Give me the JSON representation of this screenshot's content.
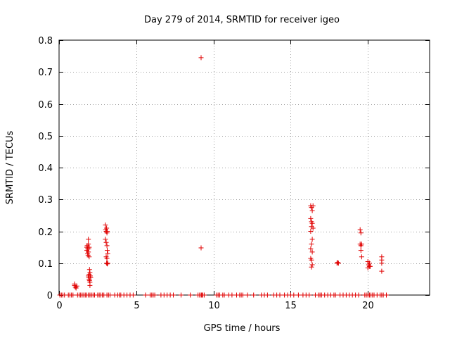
{
  "chart_data": {
    "type": "scatter",
    "title": "Day 279 of 2014, SRMTID for receiver igeo",
    "xlabel": "GPS time / hours",
    "ylabel": "SRMTID / TECUs",
    "xlim": [
      0,
      24
    ],
    "ylim": [
      0,
      0.8
    ],
    "xticks": [
      0,
      5,
      10,
      15,
      20
    ],
    "yticks": [
      0,
      0.1,
      0.2,
      0.3,
      0.4,
      0.5,
      0.6,
      0.7,
      0.8
    ],
    "xtick_labels": [
      "0",
      "5",
      "10",
      "15",
      "20"
    ],
    "ytick_labels": [
      "0",
      "0.1",
      "0.2",
      "0.3",
      "0.4",
      "0.5",
      "0.6",
      "0.7",
      "0.8"
    ],
    "grid": true,
    "marker": "plus",
    "series_color": "#e00000",
    "series": [
      {
        "name": "SRMTID",
        "points": [
          [
            0.05,
            0
          ],
          [
            0.15,
            0
          ],
          [
            0.25,
            0
          ],
          [
            0.35,
            0
          ],
          [
            0.6,
            0
          ],
          [
            0.7,
            0
          ],
          [
            0.8,
            0
          ],
          [
            0.9,
            0
          ],
          [
            1.0,
            0.035
          ],
          [
            1.0,
            0.03
          ],
          [
            1.05,
            0.025
          ],
          [
            1.1,
            0.022
          ],
          [
            1.15,
            0.028
          ],
          [
            1.2,
            0
          ],
          [
            1.3,
            0
          ],
          [
            1.4,
            0
          ],
          [
            1.5,
            0
          ],
          [
            1.6,
            0
          ],
          [
            1.7,
            0
          ],
          [
            1.8,
            0.15
          ],
          [
            1.8,
            0.14
          ],
          [
            1.82,
            0.155
          ],
          [
            1.85,
            0.13
          ],
          [
            1.85,
            0.145
          ],
          [
            1.88,
            0.125
          ],
          [
            1.9,
            0.175
          ],
          [
            1.9,
            0.16
          ],
          [
            1.9,
            0.135
          ],
          [
            1.92,
            0.145
          ],
          [
            1.95,
            0.15
          ],
          [
            1.95,
            0.12
          ],
          [
            1.9,
            0.06
          ],
          [
            1.92,
            0.055
          ],
          [
            1.95,
            0.065
          ],
          [
            1.95,
            0.05
          ],
          [
            1.97,
            0.045
          ],
          [
            1.97,
            0.08
          ],
          [
            2.0,
            0.07
          ],
          [
            2.0,
            0.04
          ],
          [
            2.0,
            0.03
          ],
          [
            2.02,
            0.06
          ],
          [
            2.05,
            0.055
          ],
          [
            1.8,
            0
          ],
          [
            1.9,
            0
          ],
          [
            2.0,
            0
          ],
          [
            2.1,
            0
          ],
          [
            2.2,
            0
          ],
          [
            2.3,
            0
          ],
          [
            2.5,
            0
          ],
          [
            2.6,
            0
          ],
          [
            2.7,
            0
          ],
          [
            2.8,
            0
          ],
          [
            2.9,
            0
          ],
          [
            3.0,
            0.22
          ],
          [
            3.02,
            0.205
          ],
          [
            3.05,
            0.2
          ],
          [
            3.08,
            0.21
          ],
          [
            3.1,
            0.195
          ],
          [
            3.12,
            0.2
          ],
          [
            3.0,
            0.175
          ],
          [
            3.05,
            0.165
          ],
          [
            3.1,
            0.155
          ],
          [
            3.12,
            0.14
          ],
          [
            3.15,
            0.13
          ],
          [
            3.05,
            0.12
          ],
          [
            3.1,
            0.115
          ],
          [
            3.08,
            0.1
          ],
          [
            3.12,
            0.098
          ],
          [
            3.15,
            0.1
          ],
          [
            3.1,
            0
          ],
          [
            3.2,
            0
          ],
          [
            3.3,
            0
          ],
          [
            3.6,
            0
          ],
          [
            3.8,
            0
          ],
          [
            3.9,
            0
          ],
          [
            4.0,
            0
          ],
          [
            4.2,
            0
          ],
          [
            4.4,
            0
          ],
          [
            4.6,
            0
          ],
          [
            4.8,
            0
          ],
          [
            5.6,
            0
          ],
          [
            5.9,
            0
          ],
          [
            6.0,
            0
          ],
          [
            6.1,
            0
          ],
          [
            6.2,
            0
          ],
          [
            6.6,
            0
          ],
          [
            6.8,
            0
          ],
          [
            7.0,
            0
          ],
          [
            7.2,
            0
          ],
          [
            7.4,
            0
          ],
          [
            7.9,
            0
          ],
          [
            8.5,
            0
          ],
          [
            9.0,
            0
          ],
          [
            9.1,
            0
          ],
          [
            9.2,
            0
          ],
          [
            9.25,
            0
          ],
          [
            9.3,
            0
          ],
          [
            9.4,
            0
          ],
          [
            9.2,
            0.745
          ],
          [
            9.2,
            0.148
          ],
          [
            10.2,
            0
          ],
          [
            10.3,
            0
          ],
          [
            10.4,
            0
          ],
          [
            10.6,
            0
          ],
          [
            10.7,
            0
          ],
          [
            11.0,
            0
          ],
          [
            11.2,
            0
          ],
          [
            11.5,
            0
          ],
          [
            11.7,
            0
          ],
          [
            11.8,
            0
          ],
          [
            11.9,
            0
          ],
          [
            12.2,
            0
          ],
          [
            12.6,
            0
          ],
          [
            13.1,
            0
          ],
          [
            13.3,
            0
          ],
          [
            13.5,
            0
          ],
          [
            13.9,
            0
          ],
          [
            14.1,
            0
          ],
          [
            14.3,
            0
          ],
          [
            14.6,
            0
          ],
          [
            14.8,
            0
          ],
          [
            15.0,
            0
          ],
          [
            15.2,
            0
          ],
          [
            15.5,
            0
          ],
          [
            15.8,
            0
          ],
          [
            16.0,
            0
          ],
          [
            16.2,
            0
          ],
          [
            16.3,
            0.28
          ],
          [
            16.35,
            0.275
          ],
          [
            16.4,
            0.265
          ],
          [
            16.45,
            0.28
          ],
          [
            16.3,
            0.24
          ],
          [
            16.35,
            0.23
          ],
          [
            16.4,
            0.225
          ],
          [
            16.45,
            0.21
          ],
          [
            16.3,
            0.2
          ],
          [
            16.35,
            0.215
          ],
          [
            16.4,
            0.175
          ],
          [
            16.35,
            0.16
          ],
          [
            16.3,
            0.145
          ],
          [
            16.4,
            0.135
          ],
          [
            16.3,
            0.115
          ],
          [
            16.35,
            0.11
          ],
          [
            16.4,
            0.095
          ],
          [
            16.35,
            0.088
          ],
          [
            16.6,
            0
          ],
          [
            16.8,
            0
          ],
          [
            16.9,
            0
          ],
          [
            17.0,
            0
          ],
          [
            17.2,
            0
          ],
          [
            17.4,
            0
          ],
          [
            17.6,
            0
          ],
          [
            17.8,
            0
          ],
          [
            17.9,
            0
          ],
          [
            18.0,
            0.1
          ],
          [
            18.05,
            0.102
          ],
          [
            18.1,
            0.1
          ],
          [
            18.2,
            0
          ],
          [
            18.4,
            0
          ],
          [
            18.6,
            0
          ],
          [
            18.8,
            0
          ],
          [
            19.0,
            0
          ],
          [
            19.2,
            0
          ],
          [
            19.4,
            0
          ],
          [
            19.5,
            0.205
          ],
          [
            19.55,
            0.195
          ],
          [
            19.5,
            0.16
          ],
          [
            19.55,
            0.155
          ],
          [
            19.6,
            0.16
          ],
          [
            19.55,
            0.14
          ],
          [
            19.6,
            0.12
          ],
          [
            19.8,
            0
          ],
          [
            19.9,
            0
          ],
          [
            20.0,
            0
          ],
          [
            20.1,
            0
          ],
          [
            20.0,
            0.105
          ],
          [
            20.05,
            0.095
          ],
          [
            20.1,
            0.09
          ],
          [
            20.0,
            0.085
          ],
          [
            20.1,
            0.1
          ],
          [
            20.15,
            0.09
          ],
          [
            20.2,
            0
          ],
          [
            20.3,
            0
          ],
          [
            20.4,
            0
          ],
          [
            20.6,
            0
          ],
          [
            20.8,
            0
          ],
          [
            20.9,
            0
          ],
          [
            21.0,
            0
          ],
          [
            21.2,
            0
          ],
          [
            20.9,
            0.12
          ],
          [
            20.9,
            0.11
          ],
          [
            20.9,
            0.1
          ],
          [
            20.9,
            0.075
          ]
        ]
      }
    ]
  }
}
